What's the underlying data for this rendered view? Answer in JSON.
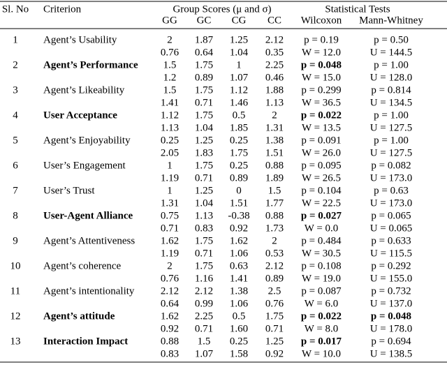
{
  "header": {
    "sl_no": "Sl. No",
    "criterion": "Criterion",
    "group_scores": "Group Scores (μ and σ)",
    "statistical_tests": "Statistical Tests",
    "groups": [
      "GG",
      "GC",
      "CG",
      "CC"
    ],
    "tests": [
      "Wilcoxon",
      "Mann-Whitney"
    ]
  },
  "rows": [
    {
      "sl_no": "1",
      "criterion": "Agent’s Usability",
      "bold": false,
      "lines": [
        [
          "2",
          "1.87",
          "1.25",
          "2.12",
          "p = 0.19",
          "p = 0.50"
        ],
        [
          "0.76",
          "0.64",
          "1.04",
          "0.35",
          "W = 12.0",
          "U = 144.5"
        ]
      ]
    },
    {
      "sl_no": "2",
      "criterion": "Agent’s Performance",
      "bold": true,
      "lines": [
        [
          "1.5",
          "1.75",
          "1",
          "2.25",
          {
            "text": "p = 0.048",
            "bold": true
          },
          "p = 1.00"
        ],
        [
          "1.2",
          "0.89",
          "1.07",
          "0.46",
          "W = 15.0",
          "U = 128.0"
        ]
      ]
    },
    {
      "sl_no": "3",
      "criterion": "Agent’s Likeability",
      "bold": false,
      "lines": [
        [
          "1.5",
          "1.75",
          "1.12",
          "1.88",
          "p = 0.299",
          "p = 0.814"
        ],
        [
          "1.41",
          "0.71",
          "1.46",
          "1.13",
          "W = 36.5",
          "U = 134.5"
        ]
      ]
    },
    {
      "sl_no": "4",
      "criterion": "User Acceptance",
      "bold": true,
      "lines": [
        [
          "1.12",
          "1.75",
          "0.5",
          "2",
          {
            "text": "p = 0.022",
            "bold": true
          },
          "p = 1.00"
        ],
        [
          "1.13",
          "1.04",
          "1.85",
          "1.31",
          "W = 13.5",
          "U = 127.5"
        ]
      ]
    },
    {
      "sl_no": "5",
      "criterion": "Agent’s Enjoyability",
      "bold": false,
      "lines": [
        [
          "0.25",
          "1.25",
          "0.25",
          "1.38",
          "p = 0.091",
          "p = 1.00"
        ],
        [
          "2.05",
          "1.83",
          "1.75",
          "1.51",
          "W = 26.0",
          "U = 127.5"
        ]
      ]
    },
    {
      "sl_no": "6",
      "criterion": "User’s Engagement",
      "bold": false,
      "lines": [
        [
          "1",
          "1.75",
          "0.25",
          "0.88",
          "p = 0.095",
          "p = 0.082"
        ],
        [
          "1.19",
          "0.71",
          "0.89",
          "1.89",
          "W = 26.5",
          "U = 173.0"
        ]
      ]
    },
    {
      "sl_no": "7",
      "criterion": "User’s Trust",
      "bold": false,
      "lines": [
        [
          "1",
          "1.25",
          "0",
          "1.5",
          "p = 0.104",
          "p = 0.63"
        ],
        [
          "1.31",
          "1.04",
          "1.51",
          "1.77",
          "W = 22.5",
          "U = 173.0"
        ]
      ]
    },
    {
      "sl_no": "8",
      "criterion": "User-Agent Alliance",
      "bold": true,
      "lines": [
        [
          "0.75",
          "1.13",
          "-0.38",
          "0.88",
          {
            "text": "p = 0.027",
            "bold": true
          },
          "p = 0.065"
        ],
        [
          "0.71",
          "0.83",
          "0.92",
          "1.73",
          "W = 0.0",
          "U = 0.065"
        ]
      ]
    },
    {
      "sl_no": "9",
      "criterion": "Agent’s Attentiveness",
      "bold": false,
      "lines": [
        [
          "1.62",
          "1.75",
          "1.62",
          "2",
          "p = 0.484",
          "p = 0.633"
        ],
        [
          "1.19",
          "0.71",
          "1.06",
          "0.53",
          "W = 30.5",
          "U = 115.5"
        ]
      ]
    },
    {
      "sl_no": "10",
      "criterion": "Agent’s coherence",
      "bold": false,
      "lines": [
        [
          "2",
          "1.75",
          "0.63",
          "2.12",
          "p = 0.108",
          "p = 0.292"
        ],
        [
          "0.76",
          "1.16",
          "1.41",
          "0.89",
          "W = 19.0",
          "U = 155.0"
        ]
      ]
    },
    {
      "sl_no": "11",
      "criterion": "Agent’s intentionality",
      "bold": false,
      "lines": [
        [
          "2.12",
          "2.12",
          "1.38",
          "2.5",
          "p = 0.087",
          "p = 0.732"
        ],
        [
          "0.64",
          "0.99",
          "1.06",
          "0.76",
          "W = 6.0",
          "U = 137.0"
        ]
      ]
    },
    {
      "sl_no": "12",
      "criterion": "Agent’s attitude",
      "bold": true,
      "lines": [
        [
          "1.62",
          "2.25",
          "0.5",
          "1.75",
          {
            "text": "p = 0.022",
            "bold": true
          },
          {
            "text": "p = 0.048",
            "bold": true
          }
        ],
        [
          "0.92",
          "0.71",
          "1.60",
          "0.71",
          "W = 8.0",
          "U = 178.0"
        ]
      ]
    },
    {
      "sl_no": "13",
      "criterion": "Interaction Impact",
      "bold": true,
      "lines": [
        [
          "0.88",
          "1.5",
          "0.25",
          "1.25",
          {
            "text": "p = 0.017",
            "bold": true
          },
          "p = 0.694"
        ],
        [
          "0.83",
          "1.07",
          "1.58",
          "0.92",
          "W = 10.0",
          "U = 138.5"
        ]
      ]
    }
  ]
}
